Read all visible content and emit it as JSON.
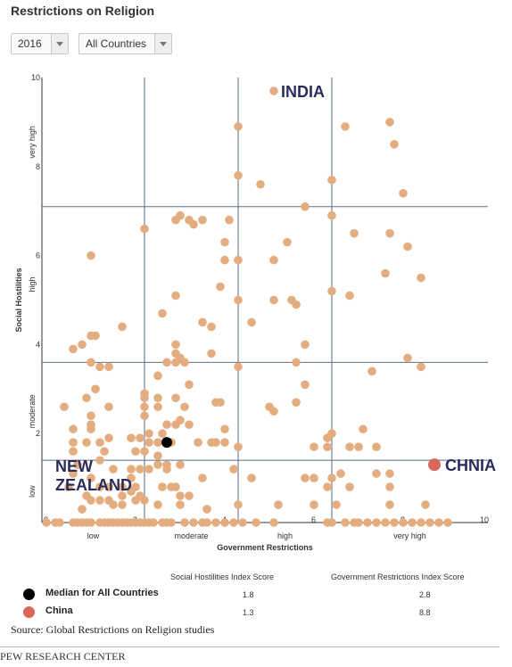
{
  "header": {
    "title": "Restrictions on Religion"
  },
  "controls": {
    "year": "2016",
    "country": "All Countries"
  },
  "colors": {
    "point": "#e3ad7f",
    "median": "#000000",
    "china": "#d9665b",
    "label": "#2a2d5c",
    "gridline": "#a9b5c7"
  },
  "chart_data": {
    "type": "scatter",
    "xlabel": "Government Restrictions",
    "ylabel": "Social Hostilities",
    "xlim": [
      0,
      10
    ],
    "ylim": [
      0,
      10
    ],
    "x_ticks": [
      "0",
      "2",
      "4",
      "6",
      "8",
      "10"
    ],
    "y_ticks": [
      "2",
      "4",
      "6",
      "8",
      "10"
    ],
    "x_categories": [
      "low",
      "moderate",
      "high",
      "very high"
    ],
    "y_categories": [
      "low",
      "moderate",
      "high",
      "very high"
    ],
    "x_category_thresholds": [
      2.3,
      4.4,
      6.5
    ],
    "y_category_thresholds": [
      1.4,
      3.6,
      7.1
    ],
    "annotations": [
      {
        "text": "INDIA",
        "x": 5.2,
        "y": 9.7
      },
      {
        "text": "CHNIA",
        "x": 8.8,
        "y": 1.3
      },
      {
        "text": "NEW ZEALAND",
        "x": 0.9,
        "y": 0.9
      }
    ],
    "series": [
      {
        "points": [
          [
            5.2,
            9.7
          ],
          [
            4.4,
            8.9
          ],
          [
            6.8,
            8.9
          ],
          [
            7.8,
            9.0
          ],
          [
            7.9,
            8.5
          ],
          [
            4.4,
            7.8
          ],
          [
            4.9,
            7.6
          ],
          [
            6.5,
            7.7
          ],
          [
            8.1,
            7.4
          ],
          [
            5.9,
            7.1
          ],
          [
            3.1,
            6.9
          ],
          [
            3.3,
            6.8
          ],
          [
            3.4,
            6.7
          ],
          [
            3.0,
            6.8
          ],
          [
            3.6,
            6.8
          ],
          [
            4.2,
            6.8
          ],
          [
            6.5,
            6.9
          ],
          [
            2.3,
            6.6
          ],
          [
            7.0,
            6.5
          ],
          [
            7.8,
            6.5
          ],
          [
            8.2,
            6.2
          ],
          [
            4.1,
            6.3
          ],
          [
            5.5,
            6.3
          ],
          [
            1.1,
            6.0
          ],
          [
            4.1,
            5.9
          ],
          [
            4.4,
            5.9
          ],
          [
            5.2,
            5.9
          ],
          [
            7.7,
            5.6
          ],
          [
            8.5,
            5.5
          ],
          [
            4.0,
            5.3
          ],
          [
            6.5,
            5.2
          ],
          [
            6.9,
            5.1
          ],
          [
            3.0,
            5.1
          ],
          [
            5.2,
            5.0
          ],
          [
            5.6,
            5.0
          ],
          [
            5.7,
            4.9
          ],
          [
            4.4,
            5.0
          ],
          [
            2.7,
            4.7
          ],
          [
            4.7,
            4.5
          ],
          [
            3.6,
            4.5
          ],
          [
            3.8,
            4.4
          ],
          [
            1.8,
            4.4
          ],
          [
            1.1,
            4.2
          ],
          [
            1.2,
            4.2
          ],
          [
            0.9,
            4.0
          ],
          [
            0.7,
            3.9
          ],
          [
            3.0,
            4.0
          ],
          [
            5.9,
            4.0
          ],
          [
            3.0,
            3.8
          ],
          [
            3.8,
            3.8
          ],
          [
            3.1,
            3.7
          ],
          [
            8.2,
            3.7
          ],
          [
            2.8,
            3.6
          ],
          [
            3.0,
            3.6
          ],
          [
            3.2,
            3.6
          ],
          [
            1.1,
            3.6
          ],
          [
            1.3,
            3.5
          ],
          [
            1.5,
            3.5
          ],
          [
            4.4,
            3.5
          ],
          [
            5.7,
            3.6
          ],
          [
            8.5,
            3.5
          ],
          [
            7.4,
            3.4
          ],
          [
            2.6,
            3.3
          ],
          [
            3.3,
            3.1
          ],
          [
            5.9,
            3.1
          ],
          [
            1.2,
            3.0
          ],
          [
            2.3,
            2.9
          ],
          [
            2.3,
            2.8
          ],
          [
            2.6,
            2.8
          ],
          [
            3.0,
            2.8
          ],
          [
            3.9,
            2.7
          ],
          [
            4.0,
            2.7
          ],
          [
            1.0,
            2.8
          ],
          [
            2.3,
            2.6
          ],
          [
            2.6,
            2.6
          ],
          [
            3.2,
            2.6
          ],
          [
            5.1,
            2.6
          ],
          [
            5.2,
            2.5
          ],
          [
            0.5,
            2.6
          ],
          [
            1.5,
            2.6
          ],
          [
            5.7,
            2.7
          ],
          [
            2.3,
            2.4
          ],
          [
            1.1,
            2.4
          ],
          [
            2.8,
            2.2
          ],
          [
            3.0,
            2.2
          ],
          [
            3.1,
            2.3
          ],
          [
            3.3,
            2.2
          ],
          [
            2.4,
            2.0
          ],
          [
            2.0,
            1.9
          ],
          [
            2.2,
            1.9
          ],
          [
            4.1,
            2.1
          ],
          [
            7.2,
            2.1
          ],
          [
            0.7,
            2.1
          ],
          [
            1.1,
            2.2
          ],
          [
            1.1,
            2.1
          ],
          [
            1.5,
            1.9
          ],
          [
            2.7,
            2.0
          ],
          [
            6.5,
            2.0
          ],
          [
            6.4,
            1.9
          ],
          [
            0.7,
            1.8
          ],
          [
            1.0,
            1.8
          ],
          [
            1.3,
            1.8
          ],
          [
            2.4,
            1.8
          ],
          [
            2.6,
            1.8
          ],
          [
            2.9,
            1.8
          ],
          [
            3.5,
            1.8
          ],
          [
            3.8,
            1.8
          ],
          [
            3.9,
            1.8
          ],
          [
            4.1,
            1.8
          ],
          [
            4.4,
            1.7
          ],
          [
            6.1,
            1.7
          ],
          [
            6.4,
            1.7
          ],
          [
            6.9,
            1.7
          ],
          [
            7.1,
            1.7
          ],
          [
            7.5,
            1.7
          ],
          [
            0.7,
            1.6
          ],
          [
            1.4,
            1.6
          ],
          [
            2.1,
            1.6
          ],
          [
            2.3,
            1.6
          ],
          [
            2.6,
            1.5
          ],
          [
            1.3,
            1.4
          ],
          [
            2.6,
            1.3
          ],
          [
            2.8,
            1.3
          ],
          [
            3.1,
            1.3
          ],
          [
            0.8,
            1.3
          ],
          [
            1.6,
            1.2
          ],
          [
            2.0,
            1.2
          ],
          [
            2.2,
            1.2
          ],
          [
            2.4,
            1.2
          ],
          [
            2.8,
            1.2
          ],
          [
            4.3,
            1.2
          ],
          [
            6.5,
            1.0
          ],
          [
            7.5,
            1.1
          ],
          [
            7.8,
            1.1
          ],
          [
            0.7,
            1.1
          ],
          [
            1.1,
            1.0
          ],
          [
            2.0,
            1.0
          ],
          [
            3.6,
            1.0
          ],
          [
            4.7,
            1.0
          ],
          [
            5.9,
            1.0
          ],
          [
            6.1,
            1.0
          ],
          [
            6.7,
            1.1
          ],
          [
            0.6,
            0.8
          ],
          [
            1.3,
            0.8
          ],
          [
            1.5,
            0.8
          ],
          [
            1.8,
            0.8
          ],
          [
            2.0,
            0.7
          ],
          [
            2.1,
            0.8
          ],
          [
            2.7,
            0.8
          ],
          [
            2.9,
            0.8
          ],
          [
            3.0,
            0.8
          ],
          [
            3.1,
            0.6
          ],
          [
            3.3,
            0.6
          ],
          [
            6.4,
            0.8
          ],
          [
            6.9,
            0.8
          ],
          [
            7.8,
            0.8
          ],
          [
            1.0,
            0.6
          ],
          [
            1.8,
            0.6
          ],
          [
            2.2,
            0.6
          ],
          [
            1.1,
            0.5
          ],
          [
            1.3,
            0.5
          ],
          [
            1.5,
            0.5
          ],
          [
            2.1,
            0.5
          ],
          [
            2.3,
            0.5
          ],
          [
            3.1,
            0.4
          ],
          [
            3.7,
            0.3
          ],
          [
            4.4,
            0.4
          ],
          [
            5.3,
            0.4
          ],
          [
            6.1,
            0.4
          ],
          [
            6.6,
            0.4
          ],
          [
            7.8,
            0.4
          ],
          [
            8.6,
            0.4
          ],
          [
            1.6,
            0.4
          ],
          [
            1.8,
            0.4
          ],
          [
            2.6,
            0.4
          ],
          [
            0.9,
            0.3
          ],
          [
            0.1,
            0.0
          ],
          [
            0.3,
            0.0
          ],
          [
            0.4,
            0.0
          ],
          [
            0.7,
            0.0
          ],
          [
            0.8,
            0.0
          ],
          [
            0.9,
            0.0
          ],
          [
            1.0,
            0.0
          ],
          [
            1.1,
            0.0
          ],
          [
            1.3,
            0.0
          ],
          [
            1.4,
            0.0
          ],
          [
            1.5,
            0.0
          ],
          [
            1.6,
            0.0
          ],
          [
            1.7,
            0.0
          ],
          [
            1.8,
            0.0
          ],
          [
            1.9,
            0.0
          ],
          [
            2.0,
            0.0
          ],
          [
            2.1,
            0.0
          ],
          [
            2.2,
            0.0
          ],
          [
            2.3,
            0.0
          ],
          [
            2.4,
            0.0
          ],
          [
            2.5,
            0.0
          ],
          [
            2.7,
            0.0
          ],
          [
            2.8,
            0.0
          ],
          [
            2.9,
            0.0
          ],
          [
            3.2,
            0.0
          ],
          [
            3.4,
            0.0
          ],
          [
            3.6,
            0.0
          ],
          [
            3.7,
            0.0
          ],
          [
            3.9,
            0.0
          ],
          [
            4.1,
            0.0
          ],
          [
            4.3,
            0.0
          ],
          [
            4.5,
            0.0
          ],
          [
            4.8,
            0.0
          ],
          [
            5.2,
            0.0
          ],
          [
            6.4,
            0.0
          ],
          [
            6.5,
            0.0
          ],
          [
            6.8,
            0.0
          ],
          [
            7.0,
            0.0
          ],
          [
            7.1,
            0.0
          ],
          [
            7.3,
            0.0
          ],
          [
            7.5,
            0.0
          ],
          [
            7.7,
            0.0
          ],
          [
            7.9,
            0.0
          ],
          [
            8.1,
            0.0
          ],
          [
            8.3,
            0.0
          ],
          [
            8.5,
            0.0
          ],
          [
            8.7,
            0.0
          ],
          [
            8.9,
            0.0
          ],
          [
            9.1,
            0.0
          ]
        ]
      }
    ],
    "median": {
      "x": 2.8,
      "y": 1.8
    },
    "china": {
      "x": 8.8,
      "y": 1.3
    }
  },
  "table": {
    "col1_header": "Social Hostilities Index Score",
    "col2_header": "Government Restrictions Index Score",
    "rows": [
      {
        "label": "Median for All Countries",
        "shi": "1.8",
        "gri": "2.8"
      },
      {
        "label": "China",
        "shi": "1.3",
        "gri": "8.8"
      }
    ]
  },
  "footer": {
    "source": "Source: Global Restrictions on Religion studies",
    "credit": "PEW RESEARCH CENTER"
  }
}
